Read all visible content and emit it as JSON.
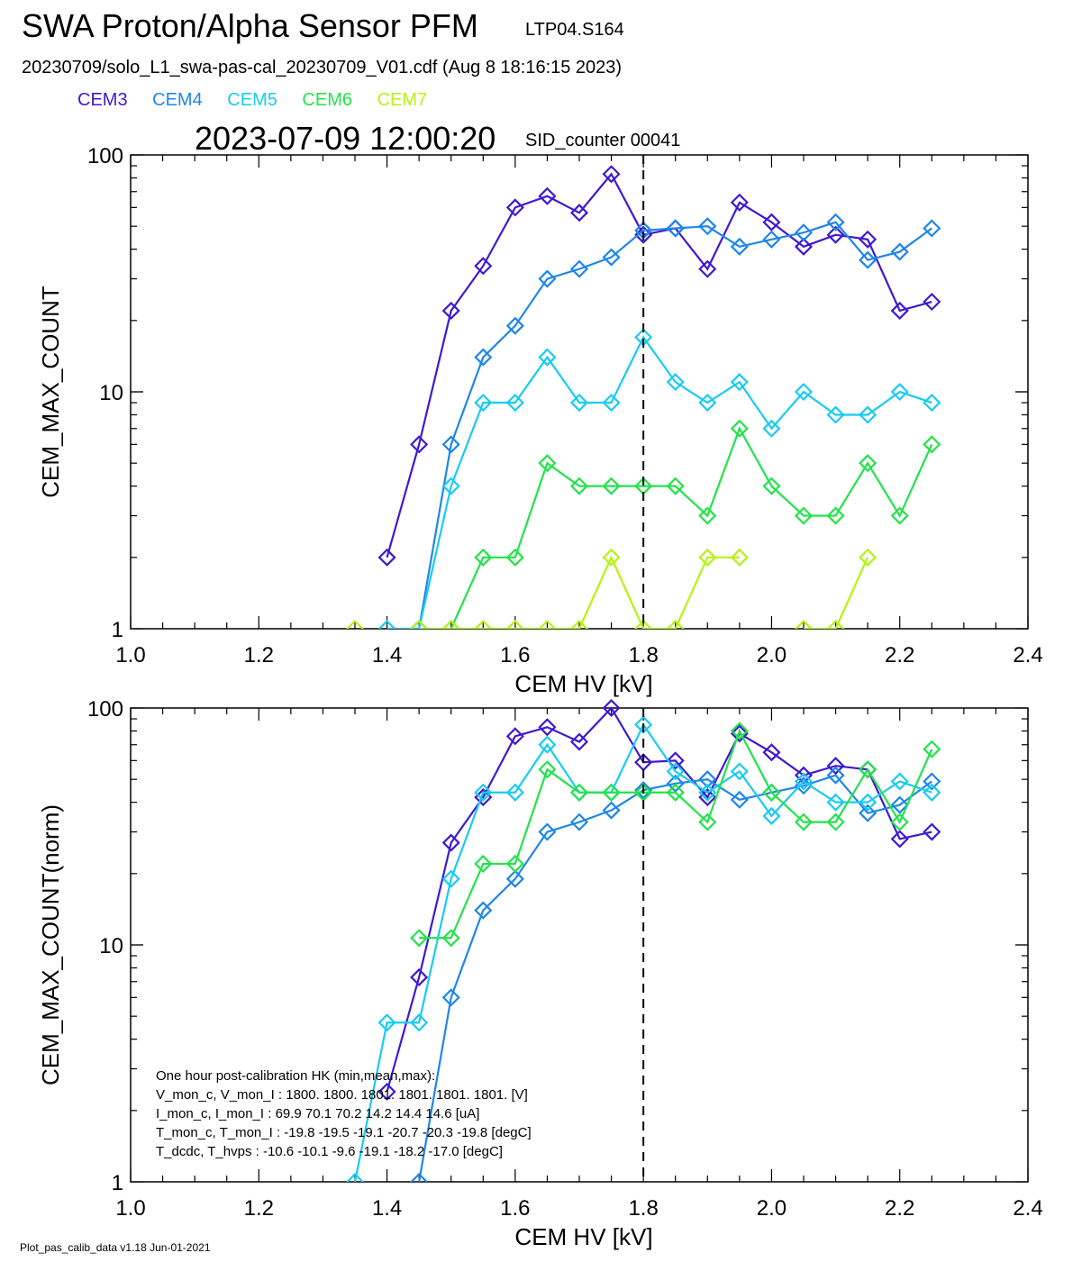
{
  "header": {
    "title": "SWA Proton/Alpha Sensor PFM",
    "tag": "LTP04.S164",
    "file": "20230709/solo_L1_swa-pas-cal_20230709_V01.cdf  (Aug  8 18:16:15 2023)",
    "timestamp": "2023-07-09 12:00:20",
    "sid": "SID_counter 00041"
  },
  "legend": [
    {
      "name": "CEM3",
      "color": "#3f19d2"
    },
    {
      "name": "CEM4",
      "color": "#1f86ea"
    },
    {
      "name": "CEM5",
      "color": "#18cbf2"
    },
    {
      "name": "CEM6",
      "color": "#22e34a"
    },
    {
      "name": "CEM7",
      "color": "#b6f214"
    }
  ],
  "footer": "Plot_pas_calib_data v1.18 Jun-01-2021",
  "chart_data": [
    {
      "type": "line",
      "xlabel": "CEM HV [kV]",
      "ylabel": "CEM_MAX_COUNT",
      "xlim": [
        1.0,
        2.4
      ],
      "ylim": [
        1,
        100
      ],
      "yscale": "log",
      "xticks": [
        "1.0",
        "1.2",
        "1.4",
        "1.6",
        "1.8",
        "2.0",
        "2.2",
        "2.4"
      ],
      "yticks": [
        "1",
        "10",
        "100"
      ],
      "vline": 1.8,
      "x": [
        1.35,
        1.4,
        1.45,
        1.5,
        1.55,
        1.6,
        1.65,
        1.7,
        1.75,
        1.8,
        1.85,
        1.9,
        1.95,
        2.0,
        2.05,
        2.1,
        2.15,
        2.2,
        2.25
      ],
      "series": [
        {
          "name": "CEM3",
          "values": [
            null,
            2,
            6,
            22,
            34,
            60,
            67,
            57,
            83,
            46,
            49,
            33,
            63,
            52,
            41,
            46,
            44,
            22,
            24
          ]
        },
        {
          "name": "CEM4",
          "values": [
            null,
            null,
            1,
            6,
            14,
            19,
            30,
            33,
            37,
            48,
            49,
            50,
            41,
            44,
            47,
            52,
            36,
            39,
            49
          ]
        },
        {
          "name": "CEM5",
          "values": [
            null,
            1,
            1,
            4,
            9,
            9,
            14,
            9,
            9,
            17,
            11,
            9,
            11,
            7,
            10,
            8,
            8,
            10,
            9
          ]
        },
        {
          "name": "CEM6",
          "values": [
            null,
            null,
            null,
            1,
            2,
            2,
            5,
            4,
            4,
            4,
            4,
            3,
            7,
            4,
            3,
            3,
            5,
            3,
            6
          ]
        },
        {
          "name": "CEM7",
          "values": [
            1,
            null,
            1,
            1,
            1,
            1,
            1,
            1,
            2,
            1,
            1,
            2,
            2,
            null,
            1,
            1,
            2,
            null,
            null
          ]
        }
      ]
    },
    {
      "type": "line",
      "xlabel": "CEM HV [kV]",
      "ylabel": "CEM_MAX_COUNT(norm)",
      "xlim": [
        1.0,
        2.4
      ],
      "ylim": [
        1,
        100
      ],
      "yscale": "log",
      "xticks": [
        "1.0",
        "1.2",
        "1.4",
        "1.6",
        "1.8",
        "2.0",
        "2.2",
        "2.4"
      ],
      "yticks": [
        "1",
        "10",
        "100"
      ],
      "vline": 1.8,
      "x": [
        1.35,
        1.4,
        1.45,
        1.5,
        1.55,
        1.6,
        1.65,
        1.7,
        1.75,
        1.8,
        1.85,
        1.9,
        1.95,
        2.0,
        2.05,
        2.1,
        2.15,
        2.2,
        2.25
      ],
      "series": [
        {
          "name": "CEM3",
          "values": [
            null,
            2.4,
            7.3,
            27,
            42,
            76,
            83,
            72,
            100,
            59,
            60,
            42,
            78,
            65,
            52,
            57,
            55,
            28,
            30
          ]
        },
        {
          "name": "CEM4",
          "values": [
            null,
            null,
            1,
            6,
            14,
            19,
            30,
            33,
            37,
            45,
            48,
            50,
            41,
            44,
            47,
            52,
            36,
            39,
            49
          ]
        },
        {
          "name": "CEM5",
          "values": [
            1,
            4.7,
            4.7,
            19,
            44,
            44,
            70,
            44,
            44,
            85,
            54,
            44,
            54,
            35,
            49,
            40,
            40,
            49,
            44
          ]
        },
        {
          "name": "CEM6",
          "values": [
            null,
            null,
            10.7,
            10.7,
            22,
            22,
            55,
            44,
            44,
            44,
            44,
            33,
            80,
            44,
            33,
            33,
            55,
            33,
            67
          ]
        }
      ],
      "annotation": [
        "One hour post-calibration HK (min,mean,max):",
        "V_mon_c, V_mon_I :   1800.   1800.   1801.       1801.   1801.   1801.   [V]",
        "I_mon_c,  I_mon_I :     69.9    70.1    70.2         14.2    14.4    14.6   [uA]",
        "T_mon_c, T_mon_I :   -19.8   -19.5   -19.1        -20.7   -20.3   -19.8   [degC]",
        "T_dcdc,    T_hvps :    -10.6   -10.1    -9.6         -19.1   -18.2   -17.0   [degC]"
      ]
    }
  ]
}
